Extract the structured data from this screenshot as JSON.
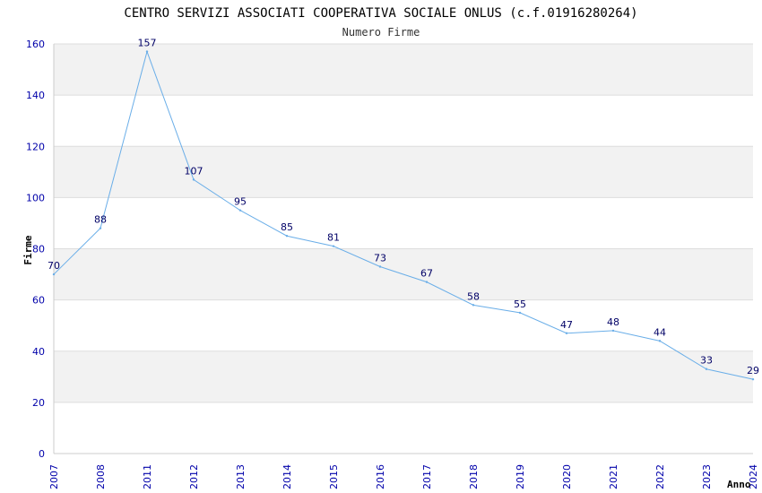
{
  "chart_data": {
    "type": "line",
    "title": "CENTRO SERVIZI ASSOCIATI COOPERATIVA SOCIALE ONLUS (c.f.01916280264)",
    "subtitle": "Numero Firme",
    "xlabel": "Anno",
    "ylabel": "Firme",
    "categories": [
      "2007",
      "2008",
      "2011",
      "2012",
      "2013",
      "2014",
      "2015",
      "2016",
      "2017",
      "2018",
      "2019",
      "2020",
      "2021",
      "2022",
      "2023",
      "2024"
    ],
    "series": [
      {
        "name": "Numero Firme",
        "values": [
          70,
          88,
          157,
          107,
          95,
          85,
          81,
          73,
          67,
          58,
          55,
          47,
          48,
          44,
          33,
          29
        ]
      }
    ],
    "ylim": [
      0,
      160
    ],
    "yticks": [
      "0",
      "20",
      "40",
      "60",
      "80",
      "100",
      "120",
      "140",
      "160"
    ],
    "grid": true,
    "colors": {
      "line": "#6aaee8",
      "axis_text": "#0000aa",
      "data_label": "#000066",
      "band": "#f2f2f2",
      "grid": "#dddddd"
    }
  }
}
